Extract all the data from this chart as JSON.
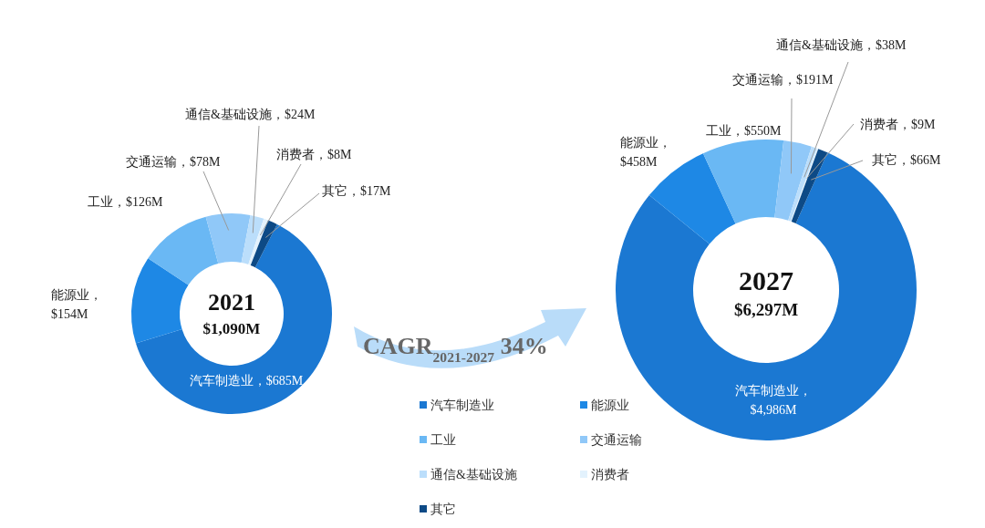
{
  "chart_data": [
    {
      "type": "donut",
      "title": "2021",
      "subtitle": "$1,090M",
      "categories": [
        "汽车制造业",
        "能源业",
        "工业",
        "交通运输",
        "通信&基础设施",
        "消费者",
        "其它"
      ],
      "values": [
        685,
        154,
        126,
        78,
        24,
        8,
        17
      ],
      "value_labels": [
        "，$685M",
        "，$154M",
        "，$126M",
        "，$78M",
        "，$24M",
        "，$8M",
        "，$17M"
      ],
      "colors": [
        "#1b78d2",
        "#1e88e5",
        "#6ab8f4",
        "#90c8f8",
        "#bbdefb",
        "#e3f2fd",
        "#0d4a86"
      ],
      "legend": "right",
      "annotations": [
        "CAGR$_{2021-2027}$ 34%"
      ]
    },
    {
      "type": "donut",
      "title": "2027",
      "subtitle": "$6,297M",
      "categories": [
        "汽车制造业",
        "能源业",
        "工业",
        "交通运输",
        "通信&基础设施",
        "消费者",
        "其它"
      ],
      "values": [
        4986,
        458,
        550,
        191,
        38,
        9,
        66
      ],
      "value_labels": [
        "，$4,986M",
        "，$458M",
        "，$550M",
        "，$191M",
        "，$38M",
        "，$9M",
        "，$66M"
      ],
      "colors": [
        "#1b78d2",
        "#1e88e5",
        "#6ab8f4",
        "#90c8f8",
        "#bbdefb",
        "#e3f2fd",
        "#0d4a86"
      ]
    }
  ]
}
